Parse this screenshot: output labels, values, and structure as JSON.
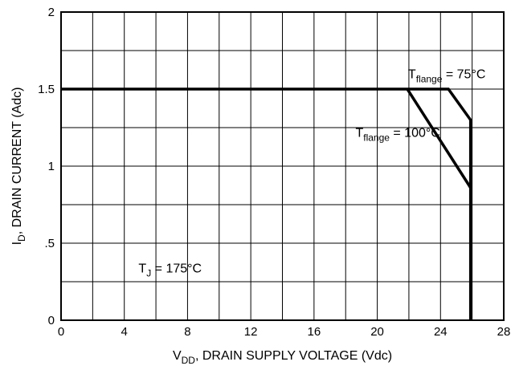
{
  "chart_data": {
    "type": "line",
    "xlabel": {
      "main": "V",
      "sub": "DD",
      "rest": ", DRAIN SUPPLY VOLTAGE (Vdc)"
    },
    "ylabel": {
      "main": "I",
      "sub": "D",
      "rest": ", DRAIN CURRENT (Adc)"
    },
    "xlim": [
      0,
      28
    ],
    "ylim": [
      0,
      2
    ],
    "xticks": [
      0,
      4,
      8,
      12,
      16,
      20,
      24,
      28
    ],
    "xtick_labels": [
      "0",
      "4",
      "8",
      "12",
      "16",
      "20",
      "24",
      "28"
    ],
    "yticks": [
      0,
      0.5,
      1,
      1.5,
      2
    ],
    "ytick_labels": [
      "0",
      ".5",
      "1",
      "1.5",
      "2"
    ],
    "grid": true,
    "series": [
      {
        "name": "Tflange = 75°C",
        "x": [
          0,
          24.5,
          25.9,
          25.9
        ],
        "y": [
          1.5,
          1.5,
          1.3,
          0
        ]
      },
      {
        "name": "Tflange = 100°C",
        "x": [
          21.9,
          25.9
        ],
        "y": [
          1.5,
          0.86
        ]
      }
    ],
    "annotations": [
      {
        "main": "T",
        "sub": "flange",
        "rest": " = 75°C",
        "x": 24.4,
        "y": 1.57,
        "anchor": "middle"
      },
      {
        "main": "T",
        "sub": "flange",
        "rest": " = 100°C",
        "x": 21.3,
        "y": 1.19,
        "anchor": "middle"
      },
      {
        "main": "T",
        "sub": "J",
        "rest": " = 175°C",
        "x": 4.9,
        "y": 0.31,
        "anchor": "start"
      }
    ]
  }
}
